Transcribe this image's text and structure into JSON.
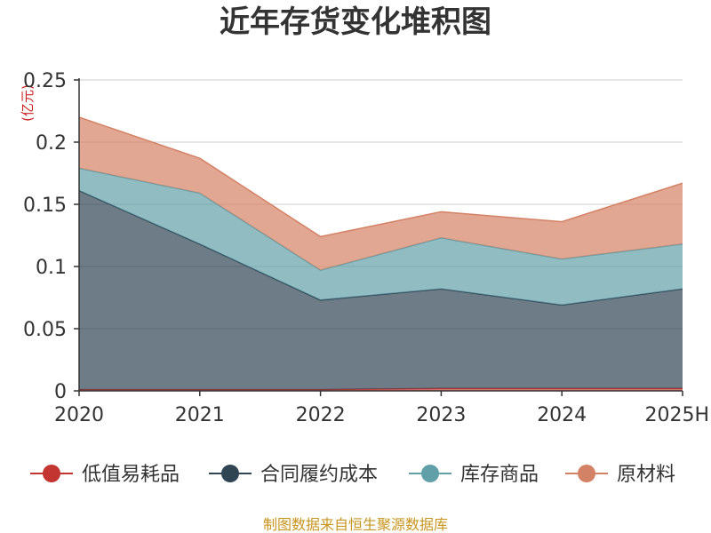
{
  "chart_data": {
    "type": "area",
    "stacked": true,
    "title": "近年存货变化堆积图",
    "unit_label": "(亿元)",
    "x": [
      "2020",
      "2021",
      "2022",
      "2023",
      "2024",
      "2025H"
    ],
    "ylim": [
      0,
      0.25
    ],
    "yticks": [
      "0",
      "0.05",
      "0.1",
      "0.15",
      "0.2",
      "0.25"
    ],
    "grid": true,
    "legend_position": "bottom",
    "series": [
      {
        "name": "低值易耗品",
        "color": "#c23531",
        "values": [
          0.001,
          0.001,
          0.001,
          0.002,
          0.002,
          0.002
        ]
      },
      {
        "name": "合同履约成本",
        "color": "#2f4554",
        "values": [
          0.16,
          0.117,
          0.072,
          0.08,
          0.067,
          0.08
        ]
      },
      {
        "name": "库存商品",
        "color": "#61a0a8",
        "values": [
          0.018,
          0.041,
          0.024,
          0.041,
          0.037,
          0.036
        ]
      },
      {
        "name": "原材料",
        "color": "#d48265",
        "values": [
          0.041,
          0.028,
          0.027,
          0.021,
          0.03,
          0.049
        ]
      }
    ]
  },
  "source_note": "制图数据来自恒生聚源数据库"
}
